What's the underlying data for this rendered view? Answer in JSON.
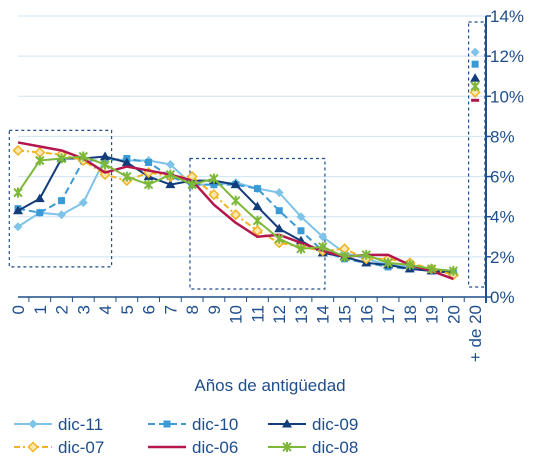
{
  "chart_data": {
    "type": "line",
    "title": "",
    "xlabel": "Años de antigüedad",
    "ylabel": "",
    "ylim": [
      0,
      14
    ],
    "y_axis_position": "right",
    "y_ticks": [
      "0%",
      "2%",
      "4%",
      "6%",
      "8%",
      "10%",
      "12%",
      "14%"
    ],
    "categories": [
      "0",
      "1",
      "2",
      "3",
      "4",
      "5",
      "6",
      "7",
      "8",
      "9",
      "10",
      "11",
      "12",
      "13",
      "14",
      "15",
      "16",
      "17",
      "18",
      "19",
      "20",
      "+ de 20"
    ],
    "grid": "horizontal",
    "legend_position": "bottom",
    "series": [
      {
        "name": "dic-11",
        "color": "#7fc3e8",
        "marker": "diamond",
        "dash": "solid",
        "values": [
          3.5,
          4.2,
          4.1,
          4.7,
          6.9,
          6.8,
          6.8,
          6.6,
          5.6,
          5.6,
          5.7,
          5.4,
          5.2,
          4.0,
          3.0,
          2.2,
          1.9,
          1.6,
          1.5,
          1.3,
          1.2,
          12.2
        ]
      },
      {
        "name": "dic-10",
        "color": "#3a9ad6",
        "marker": "square",
        "dash": "dash",
        "values": [
          4.4,
          4.2,
          4.8,
          6.8,
          6.8,
          6.9,
          6.7,
          6.0,
          5.6,
          5.6,
          5.6,
          5.4,
          4.3,
          3.3,
          2.3,
          1.9,
          1.7,
          1.5,
          1.4,
          1.3,
          1.2,
          11.6
        ]
      },
      {
        "name": "dic-09",
        "color": "#123c7a",
        "marker": "triangle",
        "dash": "solid",
        "values": [
          4.3,
          4.9,
          6.9,
          6.9,
          7.0,
          6.7,
          6.0,
          5.6,
          5.8,
          5.8,
          5.6,
          4.5,
          3.4,
          2.8,
          2.2,
          2.0,
          1.7,
          1.6,
          1.4,
          1.3,
          1.2,
          10.9
        ]
      },
      {
        "name": "dic-07",
        "color": "#f2b322",
        "marker": "diamond-open",
        "dash": "dashdot",
        "values": [
          7.3,
          7.2,
          7.1,
          6.8,
          6.1,
          5.8,
          6.2,
          6.0,
          6.0,
          5.1,
          4.1,
          3.3,
          2.7,
          2.5,
          2.3,
          2.4,
          1.9,
          1.9,
          1.7,
          1.4,
          1.1,
          10.2
        ]
      },
      {
        "name": "dic-06",
        "color": "#b3174d",
        "marker": "none",
        "dash": "solid",
        "values": [
          7.7,
          7.5,
          7.3,
          6.9,
          6.2,
          6.5,
          6.3,
          6.1,
          5.8,
          4.6,
          3.7,
          3.0,
          3.1,
          2.7,
          2.3,
          2.0,
          2.1,
          2.1,
          1.6,
          1.3,
          0.9,
          9.8
        ]
      },
      {
        "name": "dic-08",
        "color": "#7db83a",
        "marker": "x",
        "dash": "solid",
        "values": [
          5.2,
          6.8,
          6.9,
          7.0,
          6.6,
          6.0,
          5.6,
          6.1,
          5.6,
          5.9,
          4.8,
          3.8,
          2.9,
          2.4,
          2.5,
          2.0,
          2.1,
          1.7,
          1.6,
          1.4,
          1.3,
          10.5
        ]
      }
    ]
  }
}
